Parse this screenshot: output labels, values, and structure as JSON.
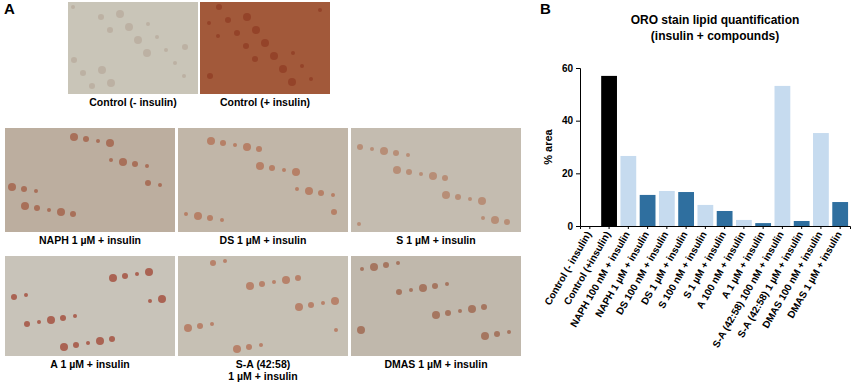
{
  "figure": {
    "panel_labels": [
      "A",
      "B"
    ],
    "images": [
      {
        "caption": [
          "Control (- insulin)"
        ]
      },
      {
        "caption": [
          "Control (+ insulin)"
        ]
      },
      {
        "caption": [
          "NAPH 1 µM + insulin"
        ]
      },
      {
        "caption": [
          "DS 1 µM + insulin"
        ]
      },
      {
        "caption": [
          "S 1 µM + insulin"
        ]
      },
      {
        "caption": [
          "A 1 µM + insulin"
        ]
      },
      {
        "caption": [
          "S-A (42:58)",
          "1 µM + insulin"
        ]
      },
      {
        "caption": [
          "DMAS 1 µM + insulin"
        ]
      }
    ]
  },
  "chart_data": {
    "type": "bar",
    "title": "ORO stain lipid quantification",
    "subtitle": "(insulin + compounds)",
    "y_label": "% area",
    "categories": [
      "Control (- insulin)",
      "Control (+insulin)",
      "NAPH 100 nM + insulin",
      "NAPH 1 µM + insulin",
      "DS 100 nM + insulin",
      "DS 1 µM + insulin",
      "S 100 nM + insulin",
      "S 1 µM + insulin",
      "A 100 nM + insulin",
      "A 1 µM + insulin",
      "S-A (42:58) 100 nM + insulin",
      "S-A (42:58) 1 µM + insulin",
      "DMAS 100 nM + insulin",
      "DMAS 1 µM + insulin"
    ],
    "values": [
      0,
      57,
      26.6,
      11.8,
      13.3,
      12.9,
      8.0,
      5.7,
      2.3,
      1.1,
      53.2,
      1.9,
      35.3,
      9.1
    ],
    "colors": [
      "#000000",
      "#000000",
      "#c6dbef",
      "#2f6f9f",
      "#c6dbef",
      "#2f6f9f",
      "#c6dbef",
      "#2f6f9f",
      "#c6dbef",
      "#2f6f9f",
      "#c6dbef",
      "#2f6f9f",
      "#c6dbef",
      "#2f6f9f"
    ],
    "ylim": [
      0,
      60
    ],
    "yticks": [
      0,
      20,
      40,
      60
    ],
    "grid": false
  }
}
